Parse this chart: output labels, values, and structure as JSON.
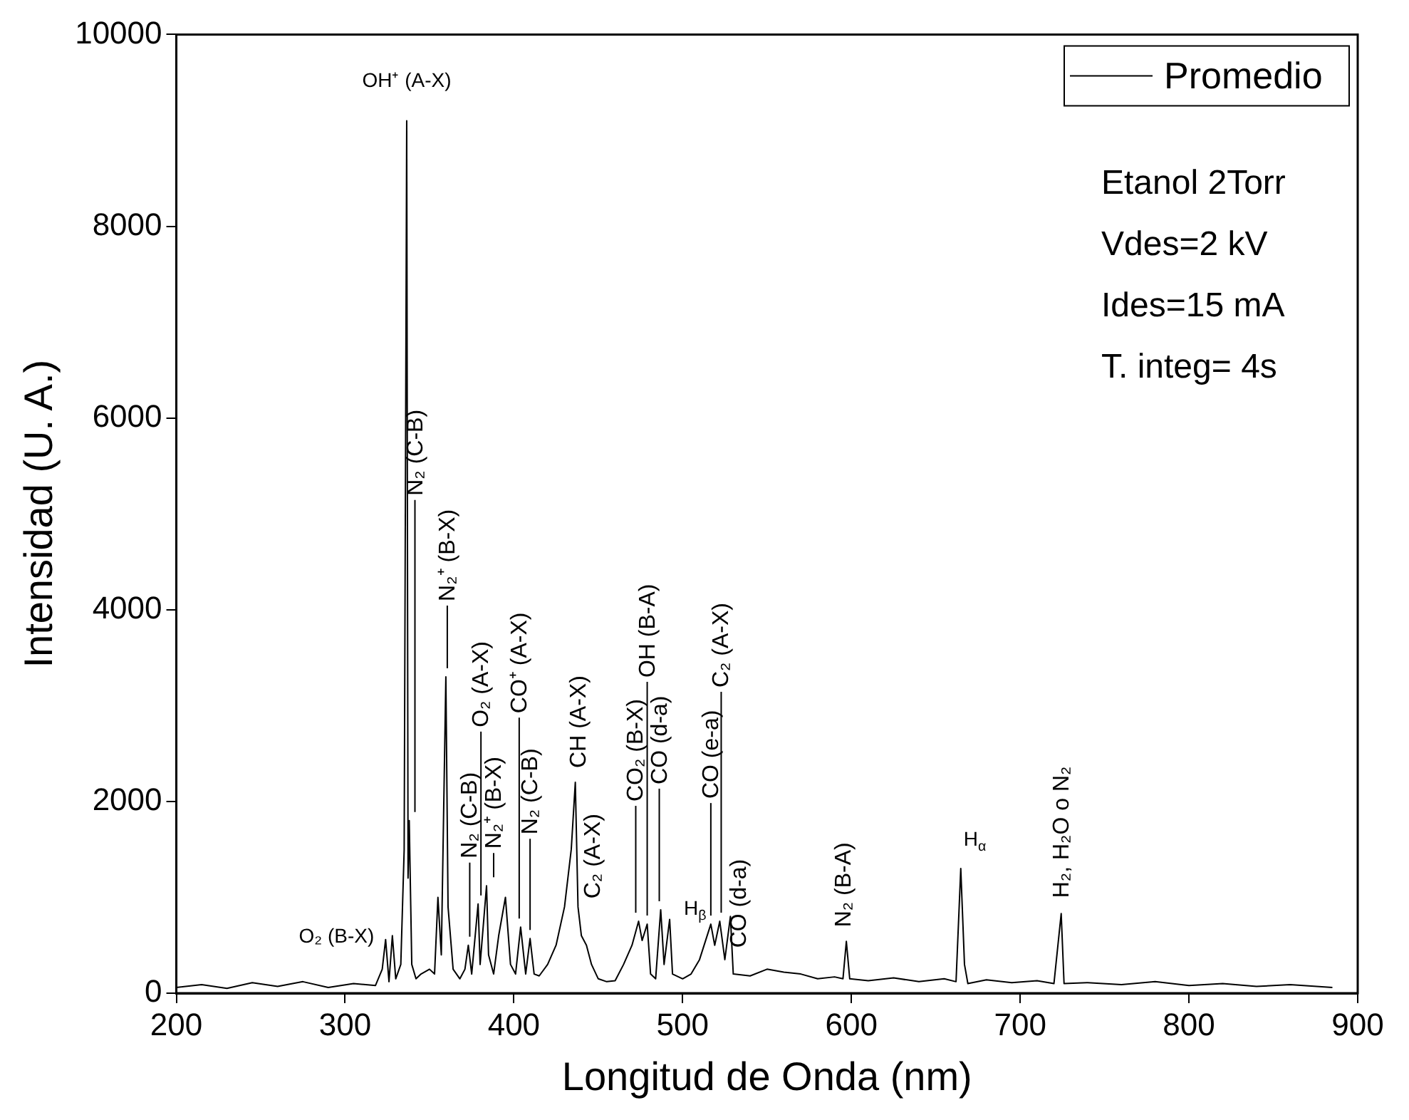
{
  "chart_data": {
    "type": "line",
    "xlabel": "Longitud de Onda (nm)",
    "ylabel": "Intensidad (U. A.)",
    "xlim": [
      200,
      900
    ],
    "xticks": [
      200,
      300,
      400,
      500,
      600,
      700,
      800,
      900
    ],
    "ylim": [
      0,
      10000
    ],
    "yticks": [
      0,
      2000,
      4000,
      6000,
      8000,
      10000
    ],
    "grid": false,
    "legend": "top right",
    "marker": "none",
    "line_style": "solid",
    "series": [
      {
        "name": "Promedio",
        "color": "#000000",
        "values": [
          60,
          90,
          50,
          110,
          70,
          120,
          60,
          100,
          80,
          250,
          560,
          120,
          600,
          150,
          300,
          1500,
          9100,
          1200,
          1800,
          300,
          150,
          200,
          250,
          200,
          1000,
          400,
          3300,
          900,
          250,
          150,
          250,
          500,
          200,
          930,
          300,
          1120,
          400,
          200,
          600,
          1000,
          300,
          200,
          690,
          200,
          570,
          200,
          180,
          300,
          500,
          900,
          1500,
          2200,
          900,
          600,
          500,
          300,
          150,
          120,
          130,
          300,
          500,
          750,
          550,
          720,
          200,
          150,
          870,
          300,
          770,
          200,
          150,
          200,
          350,
          720,
          500,
          750,
          350,
          800,
          200,
          180,
          250,
          220,
          200,
          150,
          170,
          150,
          540,
          150,
          130,
          160,
          120,
          150,
          120,
          1300,
          300,
          100,
          140,
          110,
          130,
          100,
          830,
          100,
          110,
          90,
          120,
          80,
          100,
          70,
          90,
          60
        ],
        "x": [
          200,
          215,
          230,
          245,
          260,
          275,
          290,
          305,
          318,
          322,
          324,
          326,
          328,
          330,
          333,
          335,
          336.5,
          337.3,
          338,
          339.5,
          342,
          345,
          350,
          353,
          355,
          357,
          359.7,
          361,
          364,
          368,
          371,
          373,
          375,
          378.8,
          380,
          383.8,
          385,
          388,
          391,
          395,
          398,
          401,
          404,
          407,
          409.6,
          412,
          415,
          420,
          425,
          430,
          434,
          436.4,
          438,
          440,
          443,
          446,
          450,
          455,
          460,
          465,
          470,
          473.9,
          476,
          479,
          481,
          484,
          487,
          489,
          492.3,
          494,
          500,
          505,
          510,
          516.7,
          519,
          522,
          525,
          528.3,
          530,
          540,
          550,
          560,
          570,
          580,
          590,
          595,
          597,
          599,
          610,
          625,
          640,
          655,
          662,
          664.8,
          667,
          669,
          680,
          695,
          710,
          720,
          724.3,
          726,
          740,
          760,
          780,
          800,
          820,
          840,
          860,
          885
        ]
      }
    ],
    "annotations": [
      {
        "text": "OH⁺ (A-X)",
        "x": 336.5,
        "y": 9100
      },
      {
        "text": "O₂ (B-X)",
        "x": 324,
        "y": 560
      },
      {
        "text": "N₂ (C-B)",
        "x": 338,
        "y": 1800
      },
      {
        "text": "N₂⁺ (B-X)",
        "x": 359.7,
        "y": 3300
      },
      {
        "text": "N₂ (C-B)",
        "x": 373,
        "y": 500
      },
      {
        "text": "O₂ (A-X)",
        "x": 378.8,
        "y": 930
      },
      {
        "text": "N₂⁺ (B-X)",
        "x": 383.8,
        "y": 1120
      },
      {
        "text": "CO⁺ (A-X)",
        "x": 404,
        "y": 690
      },
      {
        "text": "N₂ (C-B)",
        "x": 409.6,
        "y": 570
      },
      {
        "text": "CH (A-X)",
        "x": 436.4,
        "y": 2200
      },
      {
        "text": "C₂ (A-X)",
        "x": 440,
        "y": 600
      },
      {
        "text": "CO₂ (B-X)",
        "x": 473.9,
        "y": 750
      },
      {
        "text": "OH (B-A)",
        "x": 479,
        "y": 720
      },
      {
        "text": "CO (d-a)",
        "x": 487,
        "y": 870
      },
      {
        "text": "H$_{β}$",
        "x": 492.3,
        "y": 770
      },
      {
        "text": "CO (e-a)",
        "x": 516.7,
        "y": 720
      },
      {
        "text": "C₂ (A-X)",
        "x": 522,
        "y": 750
      },
      {
        "text": "CO (d-a)",
        "x": 528.3,
        "y": 800
      },
      {
        "text": "N₂ (B-A)",
        "x": 597,
        "y": 540
      },
      {
        "text": "H$_{α}$",
        "x": 664.8,
        "y": 1300
      },
      {
        "text": "H₂, H₂O o N₂",
        "x": 724.3,
        "y": 830
      },
      "Etanol 2Torr",
      "Vdes=2 kV",
      "Ides=15 mA",
      "T. integ= 4s"
    ]
  }
}
